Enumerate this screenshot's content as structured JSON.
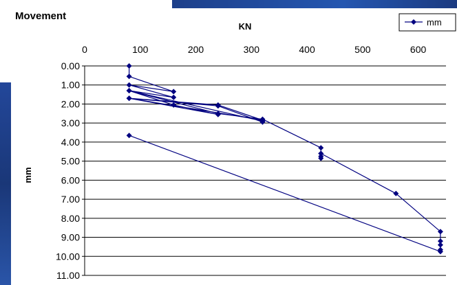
{
  "chart_data": {
    "type": "line",
    "title": "Movement",
    "xlabel": "KN",
    "ylabel": "mm",
    "x_axis_position": "top",
    "y_axis_reversed": true,
    "xlim": [
      0,
      650
    ],
    "ylim": [
      0,
      11
    ],
    "xticks": [
      "0",
      "100",
      "200",
      "300",
      "400",
      "500",
      "600"
    ],
    "yticks": [
      "0.00",
      "1.00",
      "2.00",
      "3.00",
      "4.00",
      "5.00",
      "6.00",
      "7.00",
      "8.00",
      "9.00",
      "10.00",
      "11.00"
    ],
    "grid": "horizontal",
    "legend_position": "top-right",
    "series": [
      {
        "name": "mm",
        "color": "#000080",
        "marker": "diamond",
        "x": [
          80,
          80,
          160,
          80,
          160,
          80,
          160,
          240,
          80,
          240,
          320,
          80,
          240,
          320,
          320,
          80,
          240,
          320,
          425,
          425,
          425,
          425,
          425,
          560,
          640,
          640,
          640,
          640,
          640,
          80
        ],
        "y": [
          0.0,
          0.55,
          1.35,
          1.0,
          1.65,
          1.3,
          2.05,
          2.55,
          1.7,
          2.05,
          2.85,
          1.7,
          2.1,
          2.95,
          2.9,
          1.3,
          2.5,
          2.8,
          4.3,
          4.6,
          4.75,
          4.85,
          4.6,
          6.7,
          8.7,
          9.2,
          9.4,
          9.65,
          9.75,
          3.65
        ]
      }
    ]
  }
}
